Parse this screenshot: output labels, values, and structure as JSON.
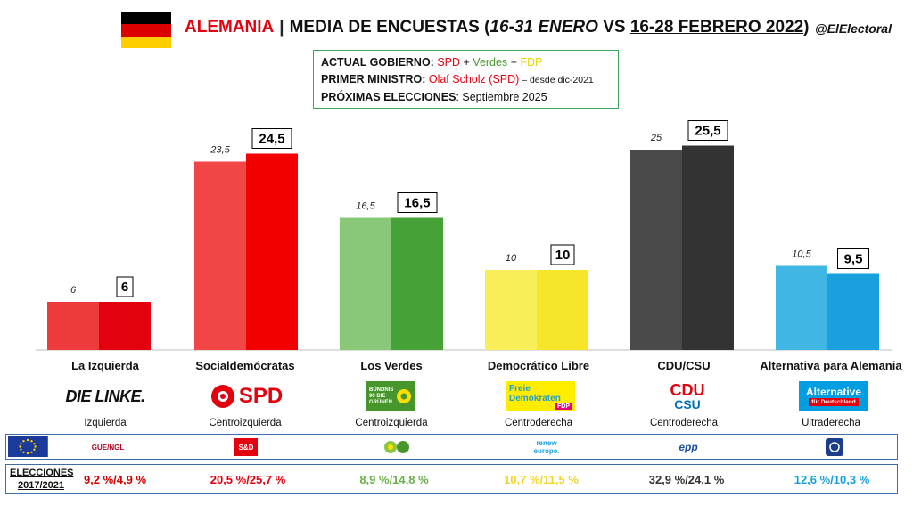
{
  "header": {
    "country": "ALEMANIA",
    "separator": "|",
    "title_part1": "MEDIA DE ENCUESTAS (",
    "period_prev": "16-31 ENERO",
    "title_vs": " VS ",
    "period_curr": "16-28 FEBRERO 2022",
    "title_close": ")",
    "handle": "@ElElectoral",
    "flag_colors": [
      "#000000",
      "#dd0000",
      "#ffce00"
    ]
  },
  "info": {
    "gov_label": "ACTUAL GOBIERNO:",
    "gov_spd": "SPD",
    "gov_plus1": " + ",
    "gov_verdes": "Verdes",
    "gov_plus2": " + ",
    "gov_fdp": "FDP",
    "pm_label": "PRIMER MINISTRO:",
    "pm_name": "Olaf Scholz (SPD)",
    "pm_since": " – desde dic-2021",
    "next_label": "PRÓXIMAS ELECCIONES",
    "next_value": ": Septiembre 2025"
  },
  "chart_data": {
    "type": "bar",
    "categories": [
      "La Izquierda",
      "Socialdemócratas",
      "Los Verdes",
      "Democrático Libre",
      "CDU/CSU",
      "Alternativa para Alemania"
    ],
    "series": [
      {
        "values": [
          6,
          23.5,
          16.5,
          10,
          25,
          10.5
        ]
      },
      {
        "values": [
          6,
          24.5,
          16.5,
          10,
          25.5,
          9.5
        ]
      }
    ],
    "value_labels_prev": [
      "6",
      "23,5",
      "16,5",
      "10",
      "25",
      "10,5"
    ],
    "value_labels_curr": [
      "6",
      "24,5",
      "16,5",
      "10",
      "25,5",
      "9,5"
    ],
    "colors_prev": [
      "#ee3a3a",
      "#f24545",
      "#88c878",
      "#f8ee58",
      "#4a4a4a",
      "#40b6e4"
    ],
    "colors_curr": [
      "#e3000f",
      "#f20000",
      "#46a236",
      "#f7e52a",
      "#333333",
      "#1aa0dc"
    ],
    "ylim": [
      0,
      27
    ],
    "grid": false
  },
  "parties": [
    {
      "name": "La Izquierda",
      "logo_text": "DIE LINKE.",
      "ideology": "Izquierda",
      "eu_group": "GUE/NGL",
      "result": "9,2 %/4,9 %",
      "result_color": "#d40000"
    },
    {
      "name": "Socialdemócratas",
      "logo_text": "SPD",
      "ideology": "Centroizquierda",
      "eu_group": "S&D",
      "result": "20,5 %/25,7 %",
      "result_color": "#e3000f"
    },
    {
      "name": "Los Verdes",
      "logo_text": "BÜNDNIS 90 DIE GRÜNEN",
      "ideology": "Centroizquierda",
      "eu_group": "",
      "result": "8,9 %/14,8 %",
      "result_color": "#6ab04c"
    },
    {
      "name": "Democrático Libre",
      "logo_text": "Freie Demokraten",
      "logo_sub": "FDP",
      "ideology": "Centroderecha",
      "eu_group": "renew europe.",
      "result": "10,7 %/11,5 %",
      "result_color": "#f0d72a"
    },
    {
      "name": "CDU/CSU",
      "logo_text": "CDU",
      "logo_sub": "CSU",
      "ideology": "Centroderecha",
      "eu_group": "epp",
      "result": "32,9 %/24,1 %",
      "result_color": "#333333"
    },
    {
      "name": "Alternativa para Alemania",
      "logo_text": "Alternative",
      "logo_sub": "für Deutschland",
      "ideology": "Ultraderecha",
      "eu_group": "",
      "result": "12,6 %/10,3 %",
      "result_color": "#1aa0dc"
    }
  ],
  "results_label_line1": "ELECCIONES",
  "results_label_line2": "2017/2021"
}
